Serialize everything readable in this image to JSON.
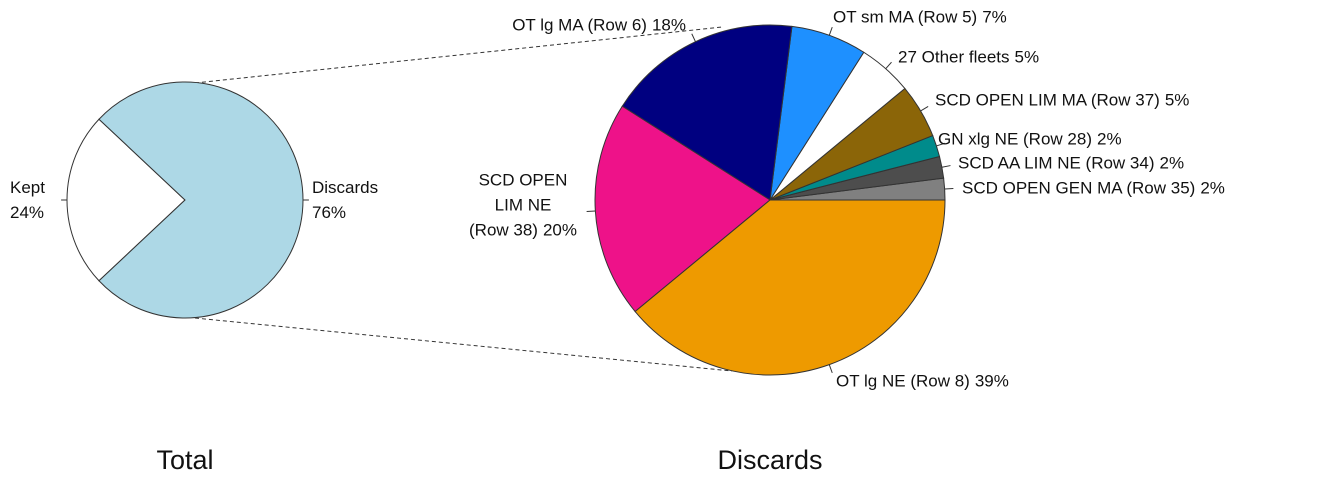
{
  "chart_data": [
    {
      "type": "pie",
      "title": "Total",
      "categories": [
        "Kept",
        "Discards"
      ],
      "values": [
        24,
        76
      ],
      "value_labels": [
        "24%",
        "76%"
      ],
      "colors": [
        "#ffffff",
        "#add8e6"
      ]
    },
    {
      "type": "pie",
      "title": "Discards",
      "categories": [
        "SCD OPEN GEN MA (Row 35)",
        "SCD AA LIM NE (Row 34)",
        "GN xlg NE (Row 28)",
        "SCD OPEN LIM MA (Row 37)",
        "27 Other fleets",
        "OT sm MA (Row 5)",
        "OT lg MA (Row 6)",
        "SCD OPEN\nLIM NE\n(Row 38)",
        "OT lg NE (Row 8)"
      ],
      "values": [
        2,
        2,
        2,
        5,
        5,
        7,
        18,
        20,
        39
      ],
      "value_labels": [
        "2%",
        "2%",
        "2%",
        "5%",
        "5%",
        "7%",
        "18%",
        "20%",
        "39%"
      ],
      "colors": [
        "#808080",
        "#4d4d4d",
        "#008b8b",
        "#8b6508",
        "#ffffff",
        "#1e90ff",
        "#000080",
        "#ee1289",
        "#ee9a00"
      ]
    }
  ]
}
